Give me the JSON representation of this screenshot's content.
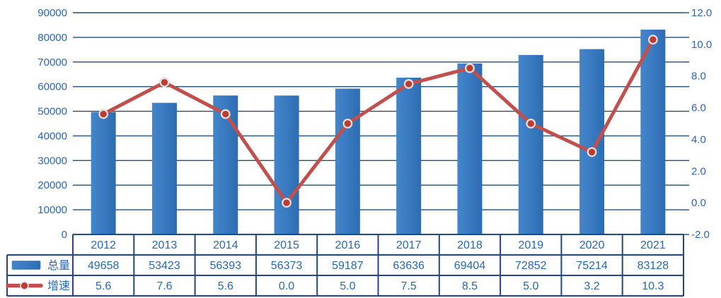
{
  "chart_data": {
    "type": "combo",
    "title": "",
    "categories": [
      "2012",
      "2013",
      "2014",
      "2015",
      "2016",
      "2017",
      "2018",
      "2019",
      "2020",
      "2021"
    ],
    "series": [
      {
        "name": "总量",
        "type": "bar",
        "axis": "left",
        "values": [
          49658,
          53423,
          56393,
          56373,
          59187,
          63636,
          69404,
          72852,
          75214,
          83128
        ]
      },
      {
        "name": "增速",
        "type": "line",
        "axis": "right",
        "values": [
          5.6,
          7.6,
          5.6,
          0.0,
          5.0,
          7.5,
          8.5,
          5.0,
          3.2,
          10.3
        ]
      }
    ],
    "growth_display": [
      "5.6",
      "7.6",
      "5.6",
      "0.0",
      "5.0",
      "7.5",
      "8.5",
      "5.0",
      "3.2",
      "10.3"
    ],
    "left_axis": {
      "min": 0,
      "max": 90000,
      "step": 10000,
      "tick_labels": [
        "90000",
        "80000",
        "70000",
        "60000",
        "50000",
        "40000",
        "30000",
        "20000",
        "10000",
        "0"
      ]
    },
    "right_axis": {
      "min": -2.0,
      "max": 12.0,
      "step": 2.0,
      "tick_labels": [
        "12.0",
        "10.0",
        "8.0",
        "6.0",
        "4.0",
        "2.0",
        "0.0",
        "-2.0"
      ]
    },
    "grid": true,
    "legend_position": "table-left",
    "data_table": true
  },
  "colors": {
    "bar_fill": "#3878BF",
    "bar_fill_light": "#4386CA",
    "bar_fill_dark": "#2E6CB0",
    "line_red": "#C0504D",
    "marker_red": "#BE3B31",
    "marker_ring": "#E9E6E3",
    "grid_navy": "#1F4E79",
    "border_navy": "#24477F",
    "text_blue": "#2767B3"
  }
}
